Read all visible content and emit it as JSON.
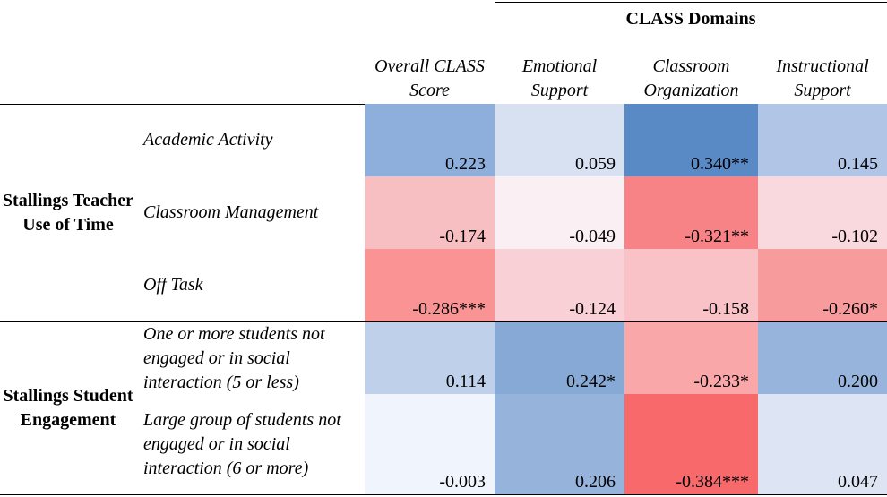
{
  "header": {
    "domains_title": "CLASS Domains",
    "columns": [
      "Overall CLASS Score",
      "Emotional Support",
      "Classroom Organization",
      "Instructional Support"
    ]
  },
  "groups": [
    {
      "label": "Stallings Teacher Use of Time",
      "rows": [
        {
          "label": "Academic Activity",
          "values": [
            "0.223",
            "0.059",
            "0.340**",
            "0.145"
          ],
          "colors": [
            "#8eaedb",
            "#d7e1f1",
            "#5a8ac6",
            "#b1c6e6"
          ]
        },
        {
          "label": "Classroom Management",
          "values": [
            "-0.174",
            "-0.049",
            "-0.321**",
            "-0.102"
          ],
          "colors": [
            "#f8bfc3",
            "#faeff3",
            "#f88387",
            "#f9d9de"
          ]
        },
        {
          "label": "Off Task",
          "values": [
            "-0.286***",
            "-0.124",
            "-0.158",
            "-0.260*"
          ],
          "colors": [
            "#f99394",
            "#f8d0d5",
            "#f8c2c7",
            "#f89b9d"
          ]
        }
      ]
    },
    {
      "label": "Stallings Student Engagement",
      "rows": [
        {
          "label": "One or more students not engaged or in social interaction (5 or less)",
          "values": [
            "0.114",
            "0.242*",
            "-0.233*",
            "0.200"
          ],
          "colors": [
            "#bfd0ea",
            "#87a9d6",
            "#f9a7a9",
            "#97b4dc"
          ]
        },
        {
          "label": "Large group of students not engaged or in social interaction (6 or more)",
          "values": [
            "-0.003",
            "0.206",
            "-0.384***",
            "0.047"
          ],
          "colors": [
            "#f0f4fc",
            "#96b3dc",
            "#f8696b",
            "#dde5f4"
          ]
        }
      ]
    }
  ]
}
